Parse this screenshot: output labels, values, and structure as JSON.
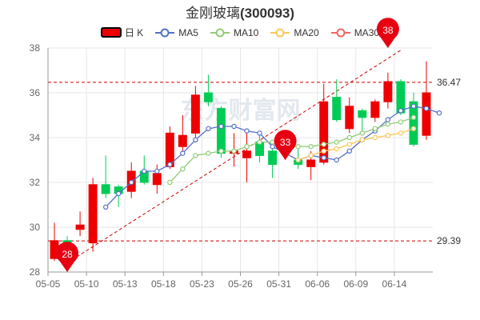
{
  "title": {
    "name": "金刚玻璃",
    "code": "(300093)"
  },
  "legend": [
    {
      "label": "日 K",
      "color": "#ee0000",
      "kind": "candle"
    },
    {
      "label": "MA5",
      "color": "#5470c6",
      "kind": "line"
    },
    {
      "label": "MA10",
      "color": "#91cc75",
      "kind": "line"
    },
    {
      "label": "MA20",
      "color": "#fac858",
      "kind": "line"
    },
    {
      "label": "MA30",
      "color": "#ee6666",
      "kind": "line"
    }
  ],
  "watermark": "东方财富网",
  "colors": {
    "up": "#ee0000",
    "down": "#00cc55",
    "ma5": "#5470c6",
    "ma10": "#91cc75",
    "ma20": "#fac858",
    "ma30": "#ee6666",
    "refline": "#cc0000",
    "pin": "#e60012",
    "grid": "#e6e6e6",
    "axis": "#999999"
  },
  "chart_data": {
    "type": "candlestick",
    "ylim": [
      28,
      38
    ],
    "yticks": [
      28,
      30,
      32,
      34,
      36,
      38
    ],
    "xtick_labels": [
      {
        "index": 0,
        "label": "05-05"
      },
      {
        "index": 3,
        "label": "05-10"
      },
      {
        "index": 6,
        "label": "05-13"
      },
      {
        "index": 9,
        "label": "05-18"
      },
      {
        "index": 12,
        "label": "05-23"
      },
      {
        "index": 15,
        "label": "05-26"
      },
      {
        "index": 18,
        "label": "05-31"
      },
      {
        "index": 21,
        "label": "06-06"
      },
      {
        "index": 24,
        "label": "06-09"
      },
      {
        "index": 27,
        "label": "06-14"
      }
    ],
    "candles": [
      {
        "o": 28.6,
        "c": 29.4,
        "h": 30.2,
        "l": 28.5
      },
      {
        "o": 29.4,
        "c": 28.5,
        "h": 29.6,
        "l": 28.3
      },
      {
        "o": 29.9,
        "c": 30.1,
        "h": 30.7,
        "l": 29.6
      },
      {
        "o": 29.3,
        "c": 31.9,
        "h": 32.2,
        "l": 28.9
      },
      {
        "o": 31.9,
        "c": 31.5,
        "h": 33.2,
        "l": 31.3
      },
      {
        "o": 31.8,
        "c": 31.5,
        "h": 31.9,
        "l": 30.9
      },
      {
        "o": 31.6,
        "c": 32.5,
        "h": 32.9,
        "l": 31.3
      },
      {
        "o": 32.5,
        "c": 32.0,
        "h": 33.2,
        "l": 31.9
      },
      {
        "o": 31.9,
        "c": 32.4,
        "h": 32.8,
        "l": 31.5
      },
      {
        "o": 32.7,
        "c": 34.2,
        "h": 34.5,
        "l": 32.6
      },
      {
        "o": 33.6,
        "c": 34.1,
        "h": 35.0,
        "l": 33.4
      },
      {
        "o": 34.2,
        "c": 35.9,
        "h": 36.3,
        "l": 34.0
      },
      {
        "o": 36.0,
        "c": 35.6,
        "h": 36.8,
        "l": 35.4
      },
      {
        "o": 35.3,
        "c": 33.3,
        "h": 35.4,
        "l": 33.1
      },
      {
        "o": 33.3,
        "c": 33.4,
        "h": 34.2,
        "l": 32.7
      },
      {
        "o": 33.1,
        "c": 33.4,
        "h": 34.4,
        "l": 32.0
      },
      {
        "o": 33.8,
        "c": 33.2,
        "h": 34.1,
        "l": 32.9
      },
      {
        "o": 33.4,
        "c": 32.8,
        "h": 33.8,
        "l": 32.2
      },
      {
        "o": 33.4,
        "c": 33.5,
        "h": 33.8,
        "l": 33.0
      },
      {
        "o": 33.0,
        "c": 32.8,
        "h": 33.5,
        "l": 32.6
      },
      {
        "o": 32.7,
        "c": 33.0,
        "h": 33.4,
        "l": 32.1
      },
      {
        "o": 32.9,
        "c": 35.6,
        "h": 36.4,
        "l": 32.8
      },
      {
        "o": 35.8,
        "c": 34.8,
        "h": 36.6,
        "l": 34.7
      },
      {
        "o": 34.4,
        "c": 35.4,
        "h": 35.8,
        "l": 34.2
      },
      {
        "o": 35.2,
        "c": 34.9,
        "h": 35.3,
        "l": 34.2
      },
      {
        "o": 34.9,
        "c": 35.6,
        "h": 35.7,
        "l": 34.7
      },
      {
        "o": 35.6,
        "c": 36.5,
        "h": 36.9,
        "l": 35.3
      },
      {
        "o": 36.5,
        "c": 35.1,
        "h": 36.6,
        "l": 35.0
      },
      {
        "o": 35.6,
        "c": 33.7,
        "h": 36.0,
        "l": 33.6
      },
      {
        "o": 34.1,
        "c": 36.0,
        "h": 37.4,
        "l": 33.9
      }
    ],
    "series": [
      {
        "name": "MA5",
        "color": "#5470c6",
        "start": 4,
        "values": [
          30.9,
          31.5,
          32.0,
          32.5,
          32.5,
          32.8,
          33.3,
          33.9,
          34.4,
          34.5,
          34.5,
          34.3,
          34.2,
          33.6,
          33.3,
          33.0,
          33.2,
          33.1,
          33.0,
          33.4,
          33.9,
          34.3,
          34.8,
          35.2,
          35.4,
          35.3,
          35.1
        ]
      },
      {
        "name": "MA10",
        "color": "#91cc75",
        "start": 9,
        "values": [
          32.0,
          32.6,
          33.2,
          33.3,
          33.4,
          33.4,
          33.6,
          33.8,
          33.8,
          33.6,
          33.6,
          33.6,
          33.7,
          33.8,
          34.0,
          34.2,
          34.4,
          34.6,
          34.7,
          34.9
        ]
      },
      {
        "name": "MA20",
        "color": "#fac858",
        "start": 19,
        "values": [
          33.0,
          33.2,
          33.4,
          33.5,
          33.7,
          33.9,
          34.0,
          34.1,
          34.2,
          34.4
        ]
      }
    ],
    "max": {
      "value": 38,
      "label": "38",
      "index": 26
    },
    "min": {
      "value": 28,
      "label": "28",
      "index": 1
    },
    "callout": {
      "value": 33,
      "label": "33",
      "index": 18
    },
    "ref_lines": [
      {
        "value": 36.47,
        "label": "36.47"
      },
      {
        "value": 29.39,
        "label": "29.39"
      }
    ],
    "trend_line": {
      "from": {
        "index": 1,
        "value": 28.4
      },
      "to": {
        "index": 27,
        "value": 37.9
      }
    }
  }
}
